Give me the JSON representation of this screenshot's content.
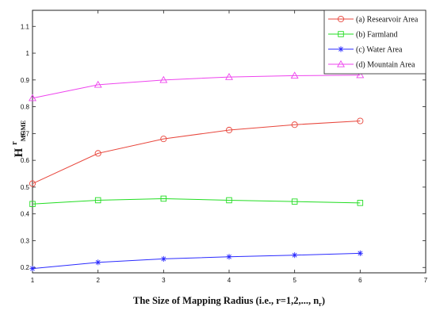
{
  "chart_data": {
    "type": "line",
    "xlabel": "The Size of Mapping Radius (i.e., r=1,2,..., nr)",
    "ylabel": {
      "main": "H",
      "sup": "r",
      "sub": "MGME"
    },
    "xlim": [
      1,
      7
    ],
    "ylim": [
      0.18,
      1.16
    ],
    "x_ticks": [
      1,
      2,
      3,
      4,
      5,
      6,
      7
    ],
    "y_ticks": [
      0.2,
      0.3,
      0.4,
      0.5,
      0.6,
      0.7,
      0.8,
      0.9,
      1,
      1.1
    ],
    "x_tick_labels": [
      "1",
      "2",
      "3",
      "4",
      "5",
      "6",
      "7"
    ],
    "y_tick_labels": [
      "0.2",
      "0.3",
      "0.4",
      "0.5",
      "0.6",
      "0.7",
      "0.8",
      "0.9",
      "1",
      "1.1"
    ],
    "grid": false,
    "legend_position": "top-right",
    "x": [
      1,
      2,
      3,
      4,
      5,
      6
    ],
    "series": [
      {
        "name": "(a) Researvoir Area",
        "color": "#e8463c",
        "marker": "circle",
        "values": [
          0.513,
          0.626,
          0.68,
          0.713,
          0.733,
          0.747
        ]
      },
      {
        "name": "(b) Farmland",
        "color": "#22dd22",
        "marker": "square",
        "values": [
          0.437,
          0.451,
          0.457,
          0.451,
          0.446,
          0.441
        ]
      },
      {
        "name": "(c) Water Area",
        "color": "#2b2bff",
        "marker": "asterisk",
        "values": [
          0.196,
          0.219,
          0.232,
          0.24,
          0.246,
          0.253
        ]
      },
      {
        "name": "(d) Mountain Area",
        "color": "#ee44ee",
        "marker": "triangle",
        "values": [
          0.832,
          0.882,
          0.9,
          0.911,
          0.916,
          0.918
        ]
      }
    ]
  }
}
